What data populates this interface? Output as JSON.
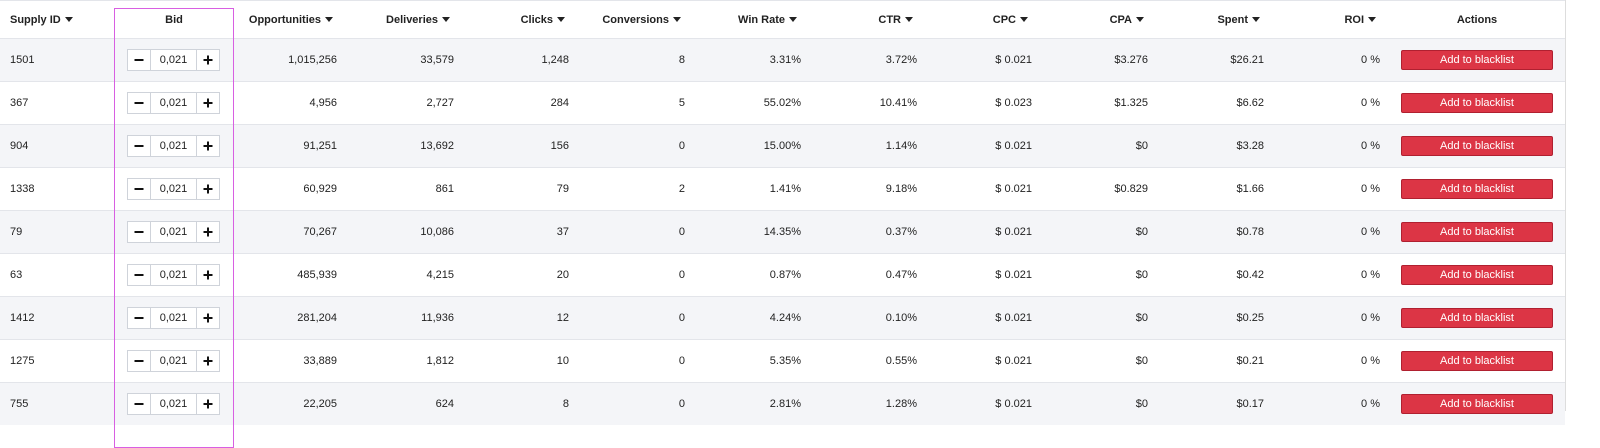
{
  "table": {
    "columns": [
      "Supply ID",
      "Bid",
      "Opportunities",
      "Deliveries",
      "Clicks",
      "Conversions",
      "Win Rate",
      "CTR",
      "CPC",
      "CPA",
      "Spent",
      "ROI",
      "Actions"
    ],
    "action_label": "Add to blacklist",
    "rows": [
      [
        "1501",
        "0,021",
        "1,015,256",
        "33,579",
        "1,248",
        "8",
        "3.31%",
        "3.72%",
        "$ 0.021",
        "$3.276",
        "$26.21",
        "0 %"
      ],
      [
        "367",
        "0,021",
        "4,956",
        "2,727",
        "284",
        "5",
        "55.02%",
        "10.41%",
        "$ 0.023",
        "$1.325",
        "$6.62",
        "0 %"
      ],
      [
        "904",
        "0,021",
        "91,251",
        "13,692",
        "156",
        "0",
        "15.00%",
        "1.14%",
        "$ 0.021",
        "$0",
        "$3.28",
        "0 %"
      ],
      [
        "1338",
        "0,021",
        "60,929",
        "861",
        "79",
        "2",
        "1.41%",
        "9.18%",
        "$ 0.021",
        "$0.829",
        "$1.66",
        "0 %"
      ],
      [
        "79",
        "0,021",
        "70,267",
        "10,086",
        "37",
        "0",
        "14.35%",
        "0.37%",
        "$ 0.021",
        "$0",
        "$0.78",
        "0 %"
      ],
      [
        "63",
        "0,021",
        "485,939",
        "4,215",
        "20",
        "0",
        "0.87%",
        "0.47%",
        "$ 0.021",
        "$0",
        "$0.42",
        "0 %"
      ],
      [
        "1412",
        "0,021",
        "281,204",
        "11,936",
        "12",
        "0",
        "4.24%",
        "0.10%",
        "$ 0.021",
        "$0",
        "$0.25",
        "0 %"
      ],
      [
        "1275",
        "0,021",
        "33,889",
        "1,812",
        "10",
        "0",
        "5.35%",
        "0.55%",
        "$ 0.021",
        "$0",
        "$0.21",
        "0 %"
      ],
      [
        "755",
        "0,021",
        "22,205",
        "624",
        "8",
        "0",
        "2.81%",
        "1.28%",
        "$ 0.021",
        "$0",
        "$0.17",
        "0 %"
      ]
    ]
  }
}
